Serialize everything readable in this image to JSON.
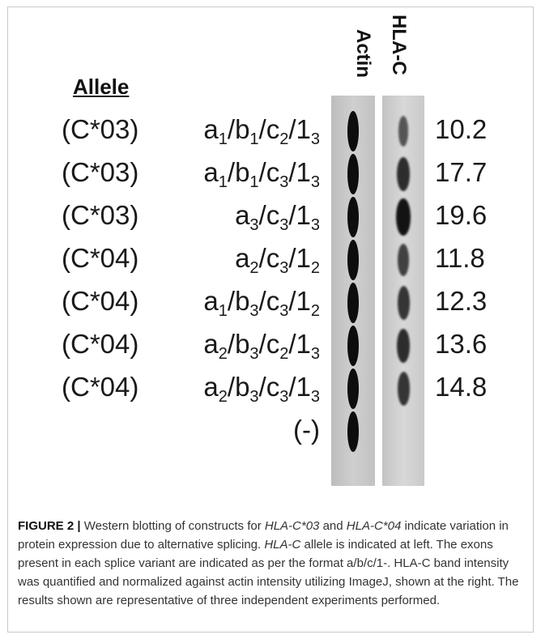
{
  "figure": {
    "allele_header": "Allele",
    "lane_labels": {
      "actin": "Actin",
      "hla": "HLA-C"
    },
    "rows": [
      {
        "allele": "(C*03)",
        "construct": [
          [
            "a",
            "1"
          ],
          [
            "b",
            "1"
          ],
          [
            "c",
            "2"
          ],
          [
            "1",
            "3"
          ]
        ],
        "value": "10.2"
      },
      {
        "allele": "(C*03)",
        "construct": [
          [
            "a",
            "1"
          ],
          [
            "b",
            "1"
          ],
          [
            "c",
            "3"
          ],
          [
            "1",
            "3"
          ]
        ],
        "value": "17.7"
      },
      {
        "allele": "(C*03)",
        "construct": [
          [
            "a",
            "3"
          ],
          [
            "c",
            "3"
          ],
          [
            "1",
            "3"
          ]
        ],
        "value": "19.6"
      },
      {
        "allele": "(C*04)",
        "construct": [
          [
            "a",
            "2"
          ],
          [
            "c",
            "3"
          ],
          [
            "1",
            "2"
          ]
        ],
        "value": "11.8"
      },
      {
        "allele": "(C*04)",
        "construct": [
          [
            "a",
            "1"
          ],
          [
            "b",
            "3"
          ],
          [
            "c",
            "3"
          ],
          [
            "1",
            "2"
          ]
        ],
        "value": "12.3"
      },
      {
        "allele": "(C*04)",
        "construct": [
          [
            "a",
            "2"
          ],
          [
            "b",
            "3"
          ],
          [
            "c",
            "2"
          ],
          [
            "1",
            "3"
          ]
        ],
        "value": "13.6"
      },
      {
        "allele": "(C*04)",
        "construct": [
          [
            "a",
            "2"
          ],
          [
            "b",
            "3"
          ],
          [
            "c",
            "3"
          ],
          [
            "1",
            "3"
          ]
        ],
        "value": "14.8"
      },
      {
        "allele": "",
        "construct_text": "(-)",
        "value": ""
      }
    ],
    "hla_band_intensity": [
      0.45,
      0.75,
      0.95,
      0.6,
      0.7,
      0.75,
      0.7,
      0
    ]
  },
  "caption": {
    "label": "FIGURE 2 |",
    "parts": [
      {
        "t": " Western blotting of constructs for "
      },
      {
        "t": "HLA-C*03",
        "i": true
      },
      {
        "t": " and "
      },
      {
        "t": "HLA-C*04",
        "i": true
      },
      {
        "t": " indicate variation in protein expression due to alternative splicing. "
      },
      {
        "t": "HLA-C",
        "i": true
      },
      {
        "t": " allele is indicated at left. The exons present in each splice variant are indicated as per the format a/b/c/1-. HLA-C band intensity was quantified and normalized against actin intensity utilizing ImageJ, shown at the right. The results shown are representative of three independent experiments performed."
      }
    ]
  }
}
